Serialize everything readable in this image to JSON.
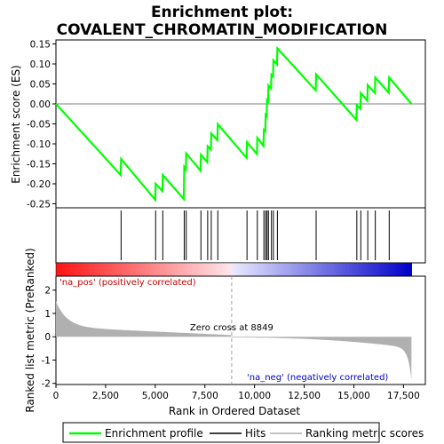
{
  "chart_data": {
    "type": "line",
    "title_line1": "Enrichment plot:",
    "title_line2": "COVALENT_CHROMATIN_MODIFICATION",
    "upper_ylabel": "Enrichment score (ES)",
    "lower_ylabel": "Ranked list metric (PreRanked)",
    "xlabel": "Rank in Ordered Dataset",
    "xlim": [
      0,
      18600
    ],
    "es_ylim": [
      -0.26,
      0.16
    ],
    "metric_ylim": [
      -2.05,
      2.6
    ],
    "x_ticks": [
      0,
      2500,
      5000,
      7500,
      10000,
      12500,
      15000,
      17500
    ],
    "x_tick_labels": [
      "0",
      "2,500",
      "5,000",
      "7,500",
      "10,000",
      "12,500",
      "15,000",
      "17,500"
    ],
    "es_ticks": [
      0.15,
      0.1,
      0.05,
      0.0,
      -0.05,
      -0.1,
      -0.15,
      -0.2,
      -0.25
    ],
    "es_tick_labels": [
      "0.15",
      "0.10",
      "0.05",
      "0.00",
      "-0.05",
      "-0.10",
      "-0.15",
      "-0.20",
      "-0.25"
    ],
    "metric_ticks": [
      2,
      1,
      0,
      -1,
      -2
    ],
    "metric_tick_labels": [
      "2",
      "1",
      "0",
      "-1",
      "-2"
    ],
    "n_genes": 17900,
    "zero_cross": 8849,
    "zero_cross_label": "Zero cross at 8849",
    "pos_label": "'na_pos' (positively correlated)",
    "neg_label": "'na_neg' (negatively correlated)",
    "hits": [
      3280,
      5020,
      5380,
      6460,
      6560,
      7300,
      7640,
      7820,
      8150,
      9620,
      10140,
      10470,
      10560,
      10630,
      10700,
      10850,
      10950,
      11150,
      13100,
      15150,
      15350,
      15700,
      16080,
      16780
    ],
    "es_profile": [
      [
        0,
        0.0
      ],
      [
        3260,
        -0.178
      ],
      [
        3280,
        -0.138
      ],
      [
        5000,
        -0.24
      ],
      [
        5020,
        -0.2
      ],
      [
        5360,
        -0.218
      ],
      [
        5380,
        -0.178
      ],
      [
        6440,
        -0.238
      ],
      [
        6460,
        -0.158
      ],
      [
        6540,
        -0.164
      ],
      [
        6560,
        -0.124
      ],
      [
        7280,
        -0.167
      ],
      [
        7300,
        -0.127
      ],
      [
        7620,
        -0.146
      ],
      [
        7640,
        -0.106
      ],
      [
        7800,
        -0.114
      ],
      [
        7820,
        -0.074
      ],
      [
        8130,
        -0.091
      ],
      [
        8150,
        -0.051
      ],
      [
        9600,
        -0.135
      ],
      [
        9620,
        -0.096
      ],
      [
        10120,
        -0.125
      ],
      [
        10140,
        -0.085
      ],
      [
        10450,
        -0.105
      ],
      [
        10470,
        -0.065
      ],
      [
        10540,
        -0.068
      ],
      [
        10560,
        -0.028
      ],
      [
        10610,
        -0.031
      ],
      [
        10630,
        0.009
      ],
      [
        10680,
        0.006
      ],
      [
        10700,
        0.046
      ],
      [
        10830,
        0.039
      ],
      [
        10850,
        0.073
      ],
      [
        10930,
        0.069
      ],
      [
        10950,
        0.109
      ],
      [
        11130,
        0.099
      ],
      [
        11150,
        0.139
      ],
      [
        13080,
        0.034
      ],
      [
        13100,
        0.074
      ],
      [
        15130,
        -0.04
      ],
      [
        15150,
        -0.003
      ],
      [
        15330,
        -0.012
      ],
      [
        15350,
        0.027
      ],
      [
        15680,
        0.008
      ],
      [
        15700,
        0.047
      ],
      [
        16060,
        0.027
      ],
      [
        16080,
        0.066
      ],
      [
        16760,
        0.028
      ],
      [
        16780,
        0.066
      ],
      [
        17900,
        0.0
      ]
    ],
    "colors": {
      "es_line": "#00ff00",
      "metric_fill": "#b0b0b0",
      "zero_cross_line": "#a0a0a0",
      "pos_text": "#cc0000",
      "neg_text": "#0000cc"
    },
    "legend": [
      {
        "label": "Enrichment profile",
        "kind": "green-line"
      },
      {
        "label": "Hits",
        "kind": "black-line"
      },
      {
        "label": "Ranking metric scores",
        "kind": "gray-line"
      }
    ]
  }
}
